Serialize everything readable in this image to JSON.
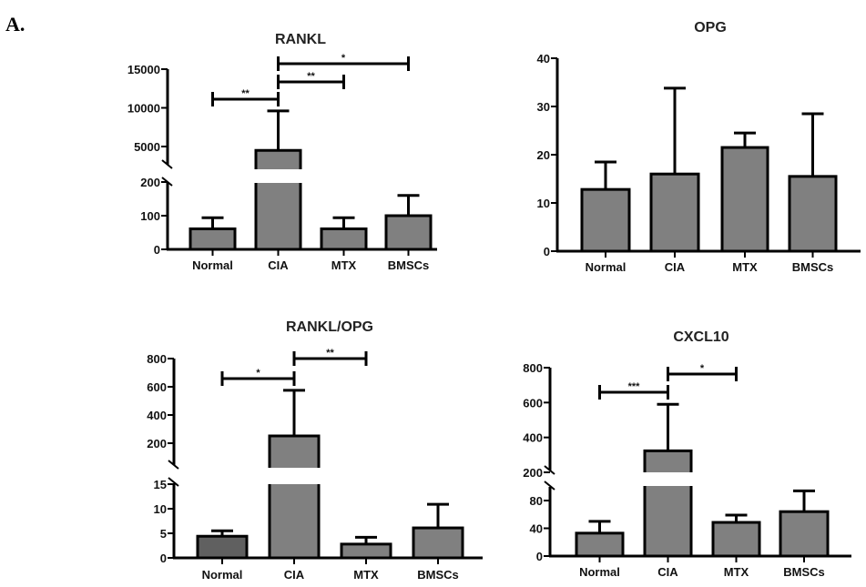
{
  "figure_label": "A.",
  "chart_data": [
    {
      "type": "bar",
      "title": "RANKL",
      "categories": [
        "Normal",
        "CIA",
        "MTX",
        "BMSCs"
      ],
      "values": [
        61,
        4500,
        61,
        100
      ],
      "error_upper": [
        94,
        9600,
        94,
        160
      ],
      "xlabel": "",
      "ylabel": "",
      "broken_axis": true,
      "lower_segment": {
        "ylim": [
          0,
          200
        ],
        "ticks": [
          0,
          100,
          200
        ]
      },
      "upper_segment": {
        "ylim": [
          2200,
          15000
        ],
        "ticks": [
          5000,
          10000,
          15000
        ]
      },
      "significance": [
        {
          "from": "Normal",
          "to": "CIA",
          "label": "**"
        },
        {
          "from": "CIA",
          "to": "MTX",
          "label": "**"
        },
        {
          "from": "CIA",
          "to": "BMSCs",
          "label": "*"
        }
      ],
      "bar_color": "#808080",
      "grid": false
    },
    {
      "type": "bar",
      "title": "OPG",
      "categories": [
        "Normal",
        "CIA",
        "MTX",
        "BMSCs"
      ],
      "values": [
        12.8,
        16.0,
        21.5,
        15.5
      ],
      "error_upper": [
        18.5,
        33.8,
        24.5,
        28.5
      ],
      "xlabel": "",
      "ylabel": "",
      "broken_axis": false,
      "ylim": [
        0,
        40
      ],
      "ticks": [
        0,
        10,
        20,
        30,
        40
      ],
      "significance": [],
      "bar_color": "#808080",
      "grid": false
    },
    {
      "type": "bar",
      "title": "RANKL/OPG",
      "categories": [
        "Normal",
        "CIA",
        "MTX",
        "BMSCs"
      ],
      "values": [
        4.4,
        252,
        2.8,
        6.1
      ],
      "error_upper": [
        5.5,
        575,
        4.2,
        10.9
      ],
      "xlabel": "",
      "ylabel": "",
      "broken_axis": true,
      "lower_segment": {
        "ylim": [
          0,
          15
        ],
        "ticks": [
          0,
          5,
          10,
          15
        ]
      },
      "upper_segment": {
        "ylim": [
          150,
          800
        ],
        "ticks": [
          200,
          400,
          600,
          800
        ]
      },
      "significance": [
        {
          "from": "Normal",
          "to": "CIA",
          "label": "*"
        },
        {
          "from": "CIA",
          "to": "MTX",
          "label": "**"
        }
      ],
      "bar_color": "#808080",
      "bar_colors": [
        "#606060",
        "#808080",
        "#808080",
        "#808080"
      ],
      "grid": false
    },
    {
      "type": "bar",
      "title": "CXCL10",
      "categories": [
        "Normal",
        "CIA",
        "MTX",
        "BMSCs"
      ],
      "values": [
        33,
        323,
        48.5,
        64
      ],
      "error_upper": [
        50,
        590,
        59,
        94
      ],
      "xlabel": "",
      "ylabel": "",
      "broken_axis": true,
      "lower_segment": {
        "ylim": [
          0,
          100
        ],
        "ticks": [
          0,
          40,
          80
        ]
      },
      "upper_segment": {
        "ylim": [
          200,
          800
        ],
        "ticks": [
          200,
          400,
          600,
          800
        ]
      },
      "significance": [
        {
          "from": "Normal",
          "to": "CIA",
          "label": "***"
        },
        {
          "from": "CIA",
          "to": "MTX",
          "label": "*"
        }
      ],
      "bar_color": "#808080",
      "grid": false
    }
  ]
}
